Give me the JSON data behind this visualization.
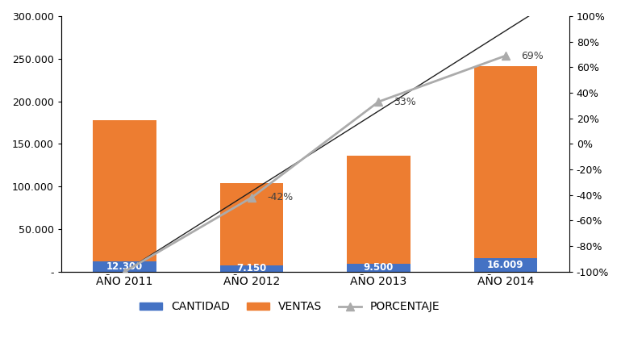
{
  "categories": [
    "AÑO 2011",
    "AÑO 2012",
    "AÑO 2013",
    "AÑO 2014"
  ],
  "cantidad": [
    12300,
    7150,
    9500,
    16009
  ],
  "ventas_total": [
    178000,
    104000,
    136000,
    241009
  ],
  "porcentaje": [
    -100,
    -42,
    33,
    69
  ],
  "pct_labels": [
    "-42%",
    "33%",
    "69%"
  ],
  "cantidad_labels": [
    "12.300",
    "7.150",
    "9.500",
    "16.009"
  ],
  "bar_color_cantidad": "#4472C4",
  "bar_color_ventas": "#ED7D31",
  "line_color_gray": "#ABABAB",
  "line_color_straight": "#202020",
  "ylim_left": [
    0,
    300000
  ],
  "ylim_right": [
    -100,
    100
  ],
  "yticks_left": [
    0,
    50000,
    100000,
    150000,
    200000,
    250000,
    300000
  ],
  "ytick_labels_left": [
    "-",
    "50.000",
    "100.000",
    "150.000",
    "200.000",
    "250.000",
    "300.000"
  ],
  "yticks_right": [
    -100,
    -80,
    -60,
    -40,
    -20,
    0,
    20,
    40,
    60,
    80,
    100
  ],
  "ytick_labels_right": [
    "-100%",
    "-80%",
    "-60%",
    "-40%",
    "-20%",
    "0%",
    "20%",
    "40%",
    "60%",
    "80%",
    "100%"
  ],
  "legend_labels": [
    "CANTIDAD",
    "VENTAS",
    "PORCENTAJE"
  ],
  "background_color": "#FFFFFF",
  "figsize": [
    7.7,
    4.5
  ],
  "dpi": 100
}
